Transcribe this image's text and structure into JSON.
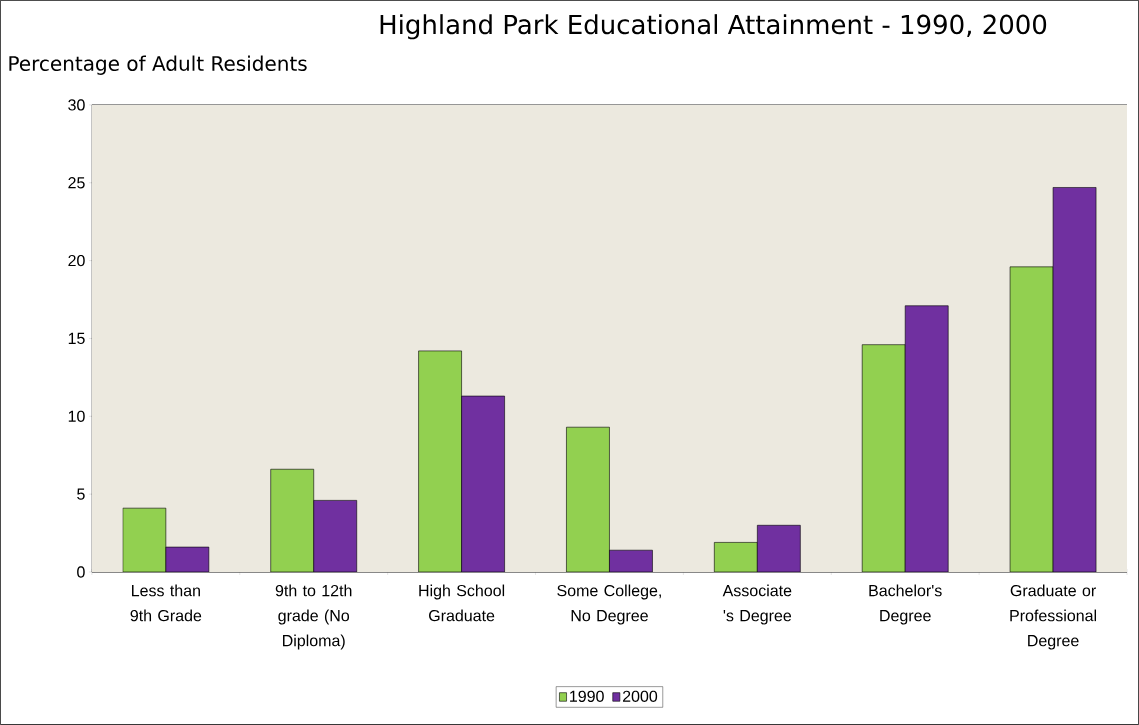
{
  "chart_data": {
    "type": "bar",
    "title": "Highland Park Educational Attainment - 1990, 2000",
    "ylabel": "Percentage of Adult Residents",
    "categories": [
      "Less than 9th Grade",
      "9th to 12th grade (No Diploma)",
      "High School Graduate",
      "Some College, No Degree",
      "Associate 's Degree",
      "Bachelor's Degree",
      "Graduate or Professional Degree"
    ],
    "series": [
      {
        "name": "1990",
        "color": "#92d050",
        "values": [
          4.1,
          6.6,
          14.2,
          9.3,
          1.9,
          14.6,
          19.6
        ]
      },
      {
        "name": "2000",
        "color": "#7030a0",
        "values": [
          1.6,
          4.6,
          11.3,
          1.4,
          3.0,
          17.1,
          24.7
        ]
      }
    ],
    "ylim": [
      0,
      30
    ],
    "yticks": [
      0,
      5,
      10,
      15,
      20,
      25,
      30
    ],
    "grid": "y",
    "legend": "bottom"
  }
}
